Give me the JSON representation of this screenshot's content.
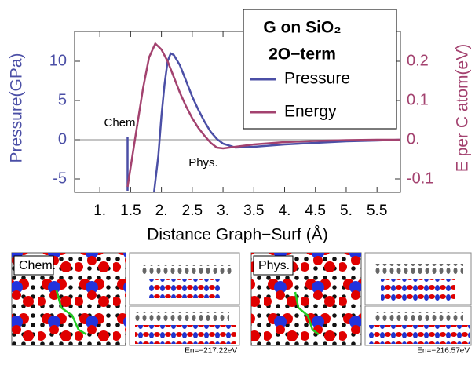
{
  "chart_data": {
    "type": "line",
    "legend_title": "G on SiO₂",
    "legend_subtitle": "2O−term",
    "x_label": "Distance Graph−Surf (Å)",
    "y_label": "Pressure(GPa)",
    "y2_label": "E per C atom(eV)",
    "xlim": [
      0.59,
      5.88
    ],
    "ylim": [
      -6.7,
      13.8
    ],
    "y2lim": [
      -0.134,
      0.276
    ],
    "xticks": [
      {
        "value": 1,
        "label": "1."
      },
      1.5,
      {
        "value": 2,
        "label": "2."
      },
      2.5,
      {
        "value": 3,
        "label": "3."
      },
      3.5,
      {
        "value": 4,
        "label": "4."
      },
      4.5,
      {
        "value": 5,
        "label": "5."
      },
      5.5
    ],
    "yticks": [
      -5,
      0,
      5,
      10
    ],
    "y2ticks": [
      -0.1,
      {
        "value": 0,
        "label": "0."
      },
      0.1,
      0.2
    ],
    "annotations": [
      {
        "text": "Chem.",
        "x": 1.35,
        "y": 2.1
      },
      {
        "text": "Phys.",
        "x": 2.68,
        "y": -3
      }
    ],
    "series": [
      {
        "name": "Pressure",
        "color": "#4b4fa6",
        "x": [
          1.45,
          1.45,
          null,
          1.88,
          1.95,
          2.0,
          2.05,
          2.1,
          2.15,
          2.2,
          2.3,
          2.4,
          2.5,
          2.6,
          2.7,
          2.8,
          2.9,
          3.0,
          3.2,
          3.5,
          4.0,
          4.5,
          5.0,
          5.5,
          5.88
        ],
        "values": [
          0.3,
          -6.5,
          null,
          -6.7,
          -2,
          3,
          7,
          10,
          11,
          10.8,
          9.5,
          7.5,
          5.5,
          3.8,
          2.3,
          1.0,
          0.1,
          -0.5,
          -1,
          -0.9,
          -0.6,
          -0.4,
          -0.2,
          -0.1,
          0
        ]
      },
      {
        "name": "Energy",
        "color": "#a3426f",
        "axis": "y2",
        "x": [
          1.45,
          1.5,
          1.6,
          1.7,
          1.8,
          1.9,
          2.0,
          2.1,
          2.2,
          2.3,
          2.4,
          2.5,
          2.6,
          2.7,
          2.8,
          2.9,
          3.0,
          3.2,
          3.5,
          4.0,
          4.5,
          5.0,
          5.5,
          5.88
        ],
        "values": [
          -0.12,
          -0.07,
          0.03,
          0.13,
          0.21,
          0.245,
          0.23,
          0.2,
          0.16,
          0.12,
          0.085,
          0.055,
          0.03,
          0.01,
          -0.008,
          -0.02,
          -0.022,
          -0.018,
          -0.012,
          -0.006,
          -0.003,
          -0.001,
          0,
          0
        ]
      }
    ]
  },
  "panels": [
    {
      "label": "Chem.",
      "energy": "En=−217.22eV"
    },
    {
      "label": "Phys.",
      "energy": "En=−216.57eV"
    }
  ]
}
